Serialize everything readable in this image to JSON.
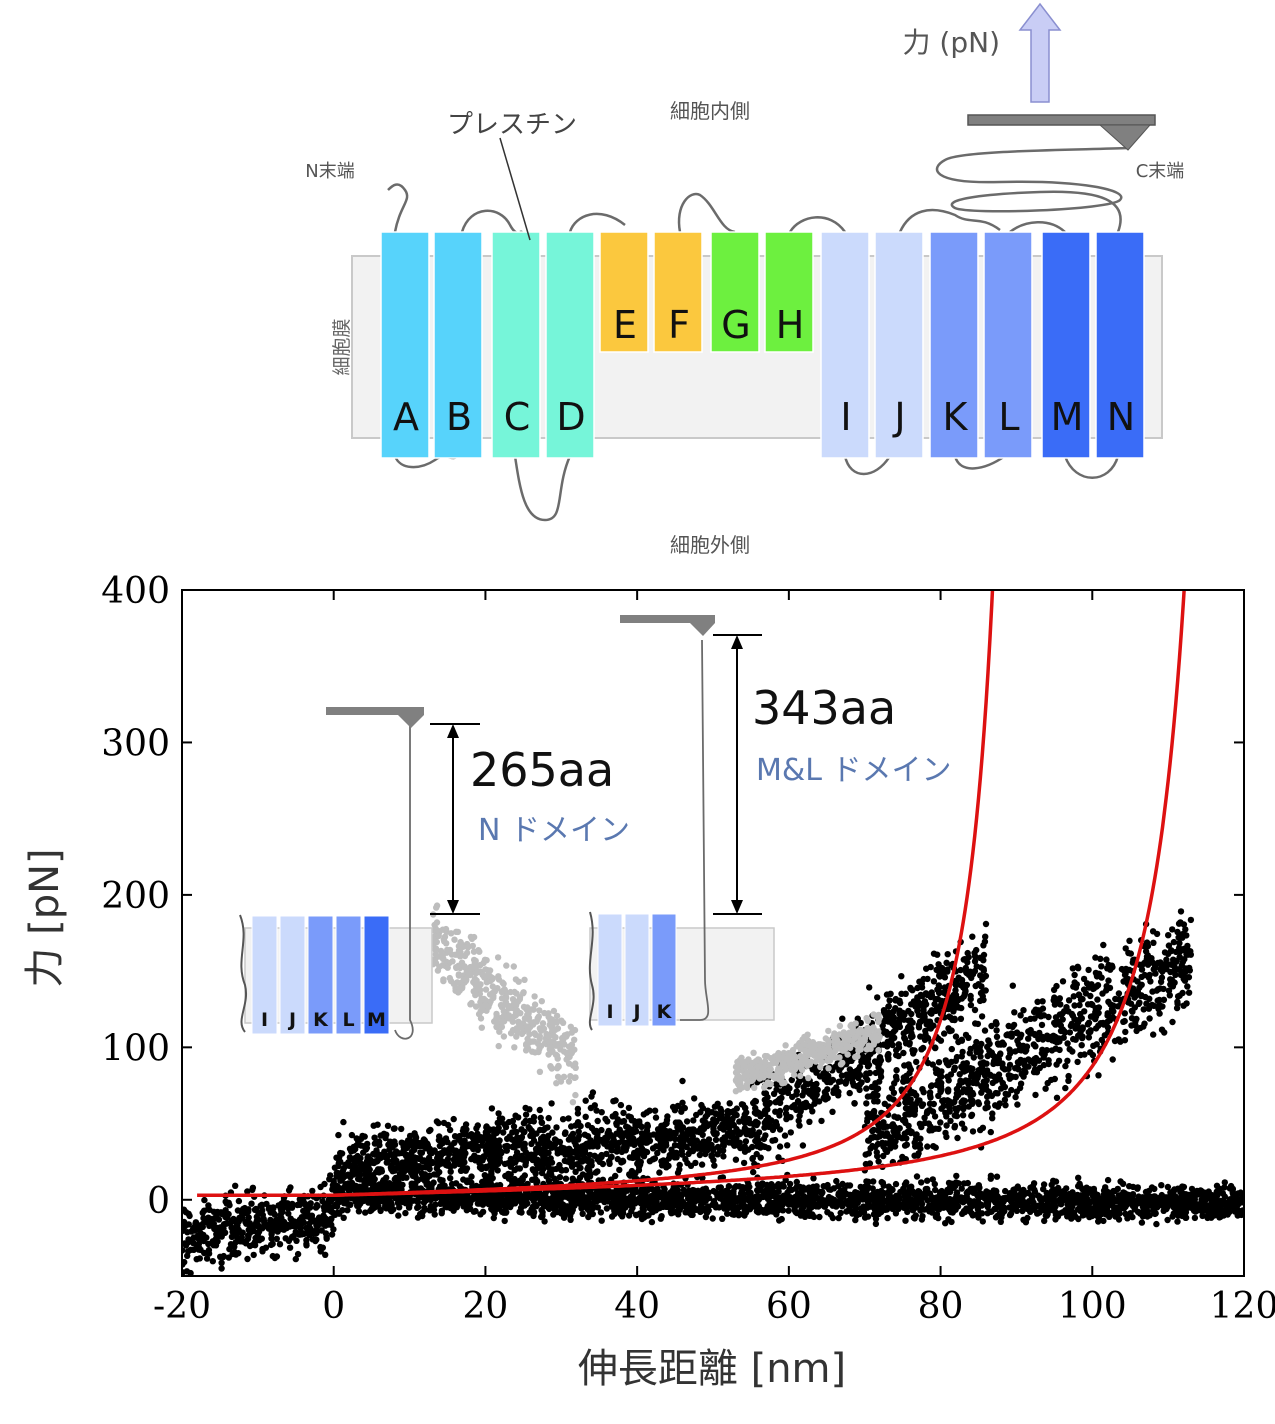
{
  "diagram": {
    "force_label": "力 (pN)",
    "intracellular": "細胞内側",
    "extracellular": "細胞外側",
    "membrane": "細胞膜",
    "n_term": "N末端",
    "c_term": "C末端",
    "plexin": "プレスチン",
    "helices": [
      {
        "label": "A",
        "color": "#57d3fb"
      },
      {
        "label": "B",
        "color": "#57d3fb"
      },
      {
        "label": "C",
        "color": "#76f5d9"
      },
      {
        "label": "D",
        "color": "#76f5d9"
      },
      {
        "label": "E",
        "color": "#fbc83e"
      },
      {
        "label": "F",
        "color": "#fbc83e"
      },
      {
        "label": "G",
        "color": "#6df03f"
      },
      {
        "label": "H",
        "color": "#6df03f"
      },
      {
        "label": "I",
        "color": "#cbdafc"
      },
      {
        "label": "J",
        "color": "#cbdafc"
      },
      {
        "label": "K",
        "color": "#7a9bfa"
      },
      {
        "label": "L",
        "color": "#7a9bfa"
      },
      {
        "label": "M",
        "color": "#3a6cf7"
      },
      {
        "label": "N",
        "color": "#3a6cf7"
      }
    ]
  },
  "chart_data": {
    "type": "scatter",
    "xlabel": "伸長距離 [nm]",
    "ylabel": "力 [pN]",
    "xlim": [
      -20,
      120
    ],
    "ylim": [
      -50,
      400
    ],
    "xticks": [
      -20,
      0,
      20,
      40,
      60,
      80,
      100,
      120
    ],
    "yticks": [
      0,
      100,
      200,
      300,
      400
    ],
    "grid": false,
    "series": [
      {
        "kind": "points",
        "color": "#000000",
        "bands": [
          {
            "x": [
              -20,
              0
            ],
            "y0": [
              -25,
              -8
            ],
            "spread": 22
          },
          {
            "x": [
              0,
              120
            ],
            "y0": [
              2,
              -2
            ],
            "spread": 12
          },
          {
            "x": [
              0,
              22
            ],
            "y0": [
              22,
              35
            ],
            "spread": 20
          },
          {
            "x": [
              20,
              55
            ],
            "y0": [
              30,
              45
            ],
            "spread": 25
          },
          {
            "x": [
              55,
              86
            ],
            "y0": [
              50,
              150
            ],
            "spread": 30
          },
          {
            "x": [
              70,
              113
            ],
            "y0": [
              40,
              160
            ],
            "spread": 35
          }
        ]
      },
      {
        "kind": "points",
        "color": "#bdbdbd",
        "bands": [
          {
            "x": [
              13,
              32
            ],
            "y0": [
              170,
              90
            ],
            "spread": 25
          },
          {
            "x": [
              53,
              72
            ],
            "y0": [
              80,
              110
            ],
            "spread": 12
          }
        ]
      },
      {
        "kind": "wlc_fit",
        "color": "#dd1111",
        "contour_length_nm": 94.5
      },
      {
        "kind": "wlc_fit",
        "color": "#dd1111",
        "contour_length_nm": 122
      }
    ],
    "annotations": [
      {
        "aa": "265aa",
        "domain": "N ドメイン",
        "inset_helices": [
          "I",
          "J",
          "K",
          "L",
          "M"
        ]
      },
      {
        "aa": "343aa",
        "domain": "M&L ドメイン",
        "inset_helices": [
          "I",
          "J",
          "K"
        ]
      }
    ]
  }
}
